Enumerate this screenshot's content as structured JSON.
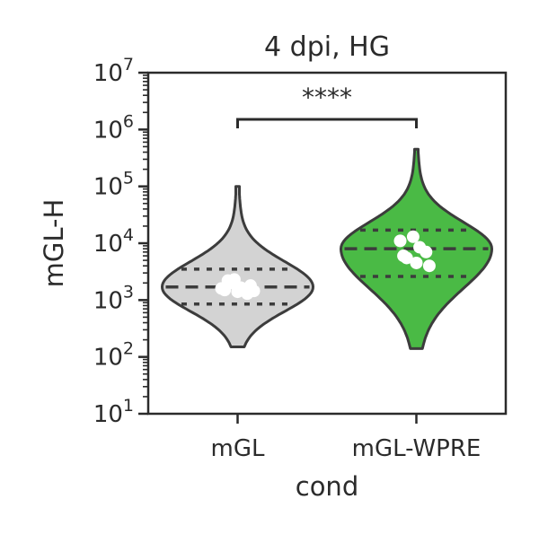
{
  "chart_data": {
    "type": "violin",
    "title": "4 dpi, HG",
    "xlabel": "cond",
    "ylabel": "mGL-H",
    "yscale": "log",
    "ylim": [
      10,
      10000000
    ],
    "y_tick_exponents": [
      1,
      2,
      3,
      4,
      5,
      6,
      7
    ],
    "y_tick_base": "10",
    "categories": [
      "mGL",
      "mGL-WPRE"
    ],
    "groups": [
      {
        "name": "mGL",
        "color": "#d3d3d3",
        "min": 150,
        "max": 100000,
        "quartiles": [
          850,
          1700,
          3500
        ],
        "points": [
          1600,
          2300,
          1300,
          1500,
          1400,
          1800,
          2200,
          1650,
          1450,
          2000
        ]
      },
      {
        "name": "mGL-WPRE",
        "color": "#4aba45",
        "min": 140,
        "max": 450000,
        "quartiles": [
          2600,
          8000,
          17000
        ],
        "points": [
          11000,
          13000,
          7000,
          6000,
          4500,
          4000,
          5500,
          8500
        ]
      }
    ],
    "annotation": {
      "text": "****",
      "between": [
        "mGL",
        "mGL-WPRE"
      ]
    }
  }
}
